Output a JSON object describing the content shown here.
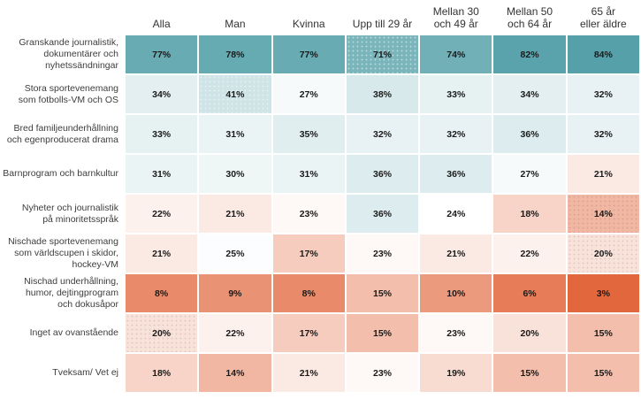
{
  "chart_data": {
    "type": "heatmap",
    "columns": [
      "Alla",
      "Man",
      "Kvinna",
      "Upp till 29 år",
      "Mellan 30\noch 49 år",
      "Mellan 50\noch 64 år",
      "65 år\neller äldre"
    ],
    "rows": [
      "Granskande journalistik,\ndokumentärer och\nnyhetssändningar",
      "Stora sportevenemang\nsom fotbolls-VM och OS",
      "Bred familjeunderhållning\noch egenproducerat drama",
      "Barnprogram och barnkultur",
      "Nyheter och journalistik\npå minoritetsspråk",
      "Nischade sportevenemang\nsom världscupen i skidor,\nhockey-VM",
      "Nischad underhållning,\nhumor, dejtingprogram\noch dokusåpor",
      "Inget av ovanstående",
      "Tveksam/ Vet ej"
    ],
    "values": [
      [
        77,
        78,
        77,
        71,
        74,
        82,
        84
      ],
      [
        34,
        41,
        27,
        38,
        33,
        34,
        32
      ],
      [
        33,
        31,
        35,
        32,
        32,
        36,
        32
      ],
      [
        31,
        30,
        31,
        36,
        36,
        27,
        21
      ],
      [
        22,
        21,
        23,
        36,
        24,
        18,
        14
      ],
      [
        21,
        25,
        17,
        23,
        21,
        22,
        20
      ],
      [
        8,
        9,
        8,
        15,
        10,
        6,
        3
      ],
      [
        20,
        22,
        17,
        15,
        23,
        20,
        15
      ],
      [
        18,
        14,
        21,
        23,
        19,
        15,
        15
      ]
    ],
    "value_suffix": "%",
    "color_scale": {
      "low_value": 3,
      "mid_value": 24,
      "high_value": 84,
      "low_color": "#E2673C",
      "mid_color": "#FFFFFF",
      "high_color": "#55A0A9"
    },
    "dotted_cells": [
      [
        0,
        3
      ],
      [
        1,
        1
      ],
      [
        4,
        6
      ],
      [
        5,
        6
      ],
      [
        7,
        0
      ]
    ]
  }
}
